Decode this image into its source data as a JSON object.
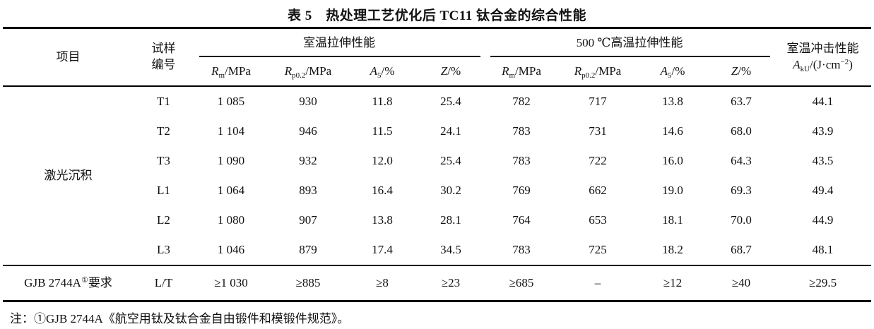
{
  "title": "表 5　热处理工艺优化后 TC11 钛合金的综合性能",
  "header": {
    "project": "项目",
    "sample_line1": "试样",
    "sample_line2": "编号",
    "group_room_temp": "室温拉伸性能",
    "group_high_temp": "500 ℃高温拉伸性能",
    "impact_title": "室温冲击性能",
    "impact_symbol": {
      "base": "A",
      "sub": "kU",
      "mid": "/(J·cm",
      "sup": "−2",
      "end": ")"
    },
    "cols": [
      {
        "base": "R",
        "sub": "m",
        "rest": "/MPa"
      },
      {
        "base": "R",
        "sub": "p0.2",
        "rest": "/MPa"
      },
      {
        "base": "A",
        "sub": "5",
        "rest": "/%"
      },
      {
        "base": "Z",
        "sub": "",
        "rest": "/%"
      },
      {
        "base": "R",
        "sub": "m",
        "rest": "/MPa"
      },
      {
        "base": "R",
        "sub": "p0.2",
        "rest": "/MPa"
      },
      {
        "base": "A",
        "sub": "5",
        "rest": "/%"
      },
      {
        "base": "Z",
        "sub": "",
        "rest": "/%"
      }
    ]
  },
  "body": {
    "project_group": "激光沉积",
    "rows": [
      {
        "sample": "T1",
        "values": [
          "1 085",
          "930",
          "11.8",
          "25.4",
          "782",
          "717",
          "13.8",
          "63.7",
          "44.1"
        ]
      },
      {
        "sample": "T2",
        "values": [
          "1 104",
          "946",
          "11.5",
          "24.1",
          "783",
          "731",
          "14.6",
          "68.0",
          "43.9"
        ]
      },
      {
        "sample": "T3",
        "values": [
          "1 090",
          "932",
          "12.0",
          "25.4",
          "783",
          "722",
          "16.0",
          "64.3",
          "43.5"
        ]
      },
      {
        "sample": "L1",
        "values": [
          "1 064",
          "893",
          "16.4",
          "30.2",
          "769",
          "662",
          "19.0",
          "69.3",
          "49.4"
        ]
      },
      {
        "sample": "L2",
        "values": [
          "1 080",
          "907",
          "13.8",
          "28.1",
          "764",
          "653",
          "18.1",
          "70.0",
          "44.9"
        ]
      },
      {
        "sample": "L3",
        "values": [
          "1 046",
          "879",
          "17.4",
          "34.5",
          "783",
          "725",
          "18.2",
          "68.7",
          "48.1"
        ]
      }
    ],
    "requirement": {
      "project_main": "GJB 2744A",
      "project_sup": "①",
      "project_tail": "要求",
      "sample": "L/T",
      "values": [
        "≥1 030",
        "≥885",
        "≥8",
        "≥23",
        "≥685",
        "–",
        "≥12",
        "≥40",
        "≥29.5"
      ]
    }
  },
  "note": "注：①GJB 2744A《航空用钛及钛合金自由锻件和模锻件规范》。"
}
